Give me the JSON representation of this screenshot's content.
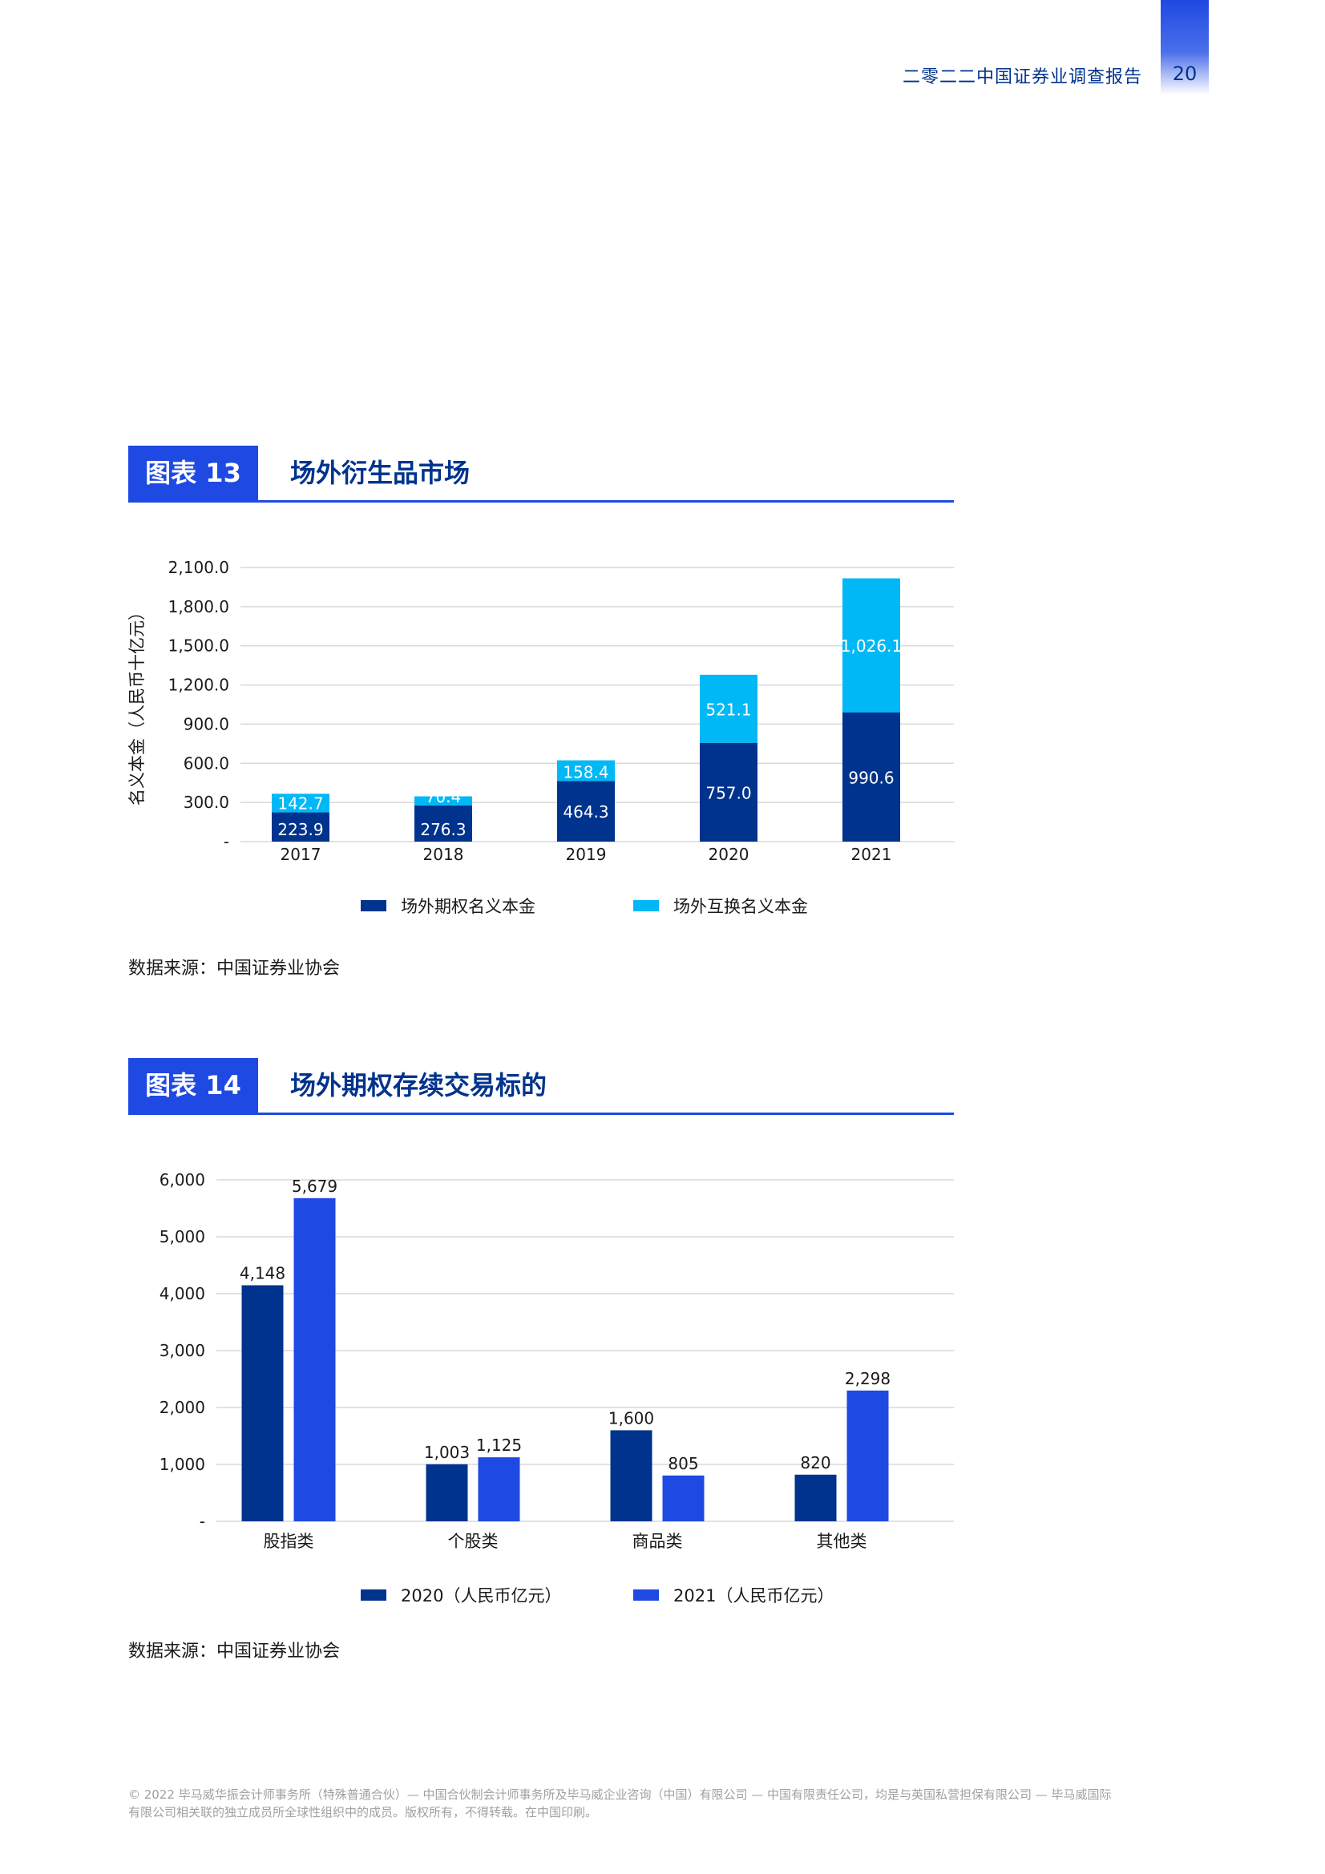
{
  "header": {
    "title": "二零二二中国证券业调查报告",
    "page_number": "20"
  },
  "figure13": {
    "badge": "图表 13",
    "title": "场外衍生品市场",
    "source": "数据来源：中国证券业协会"
  },
  "figure14": {
    "badge": "图表 14",
    "title": "场外期权存续交易标的",
    "source": "数据来源：中国证券业协会"
  },
  "footer": {
    "line1": "© 2022 毕马威华振会计师事务所（特殊普通合伙）— 中国合伙制会计师事务所及毕马威企业咨询（中国）有限公司 — 中国有限责任公司，均是与英国私营担保有限公司 — 毕马威国际",
    "line2": "有限公司相关联的独立成员所全球性组织中的成员。版权所有，不得转载。在中国印刷。"
  },
  "colors": {
    "dark_navy": "#00338d",
    "cyan": "#00b8f5",
    "blue": "#1e49e2"
  },
  "chart_data": [
    {
      "type": "bar",
      "stacked": true,
      "categories": [
        "2017",
        "2018",
        "2019",
        "2020",
        "2021"
      ],
      "series": [
        {
          "name": "场外期权名义本金",
          "values": [
            223.9,
            276.3,
            464.3,
            757.0,
            990.6
          ],
          "labels": [
            "223.9",
            "276.3",
            "464.3",
            "757.0",
            "990.6"
          ],
          "color": "#00338d"
        },
        {
          "name": "场外互换名义本金",
          "values": [
            142.7,
            70.4,
            158.4,
            521.1,
            1026.1
          ],
          "labels": [
            "142.7",
            "70.4",
            "158.4",
            "521.1",
            "1,026.1"
          ],
          "color": "#00b8f5"
        }
      ],
      "ylabel": "名义本金（人民币十亿元）",
      "ylim": [
        0,
        2100
      ],
      "yticks": [
        0,
        300,
        600,
        900,
        1200,
        1500,
        1800,
        2100
      ],
      "ytick_labels": [
        "-",
        "300.0",
        "600.0",
        "900.0",
        "1,200.0",
        "1,500.0",
        "1,800.0",
        "2,100.0"
      ],
      "grid": true,
      "legend": "bottom"
    },
    {
      "type": "bar",
      "stacked": false,
      "categories": [
        "股指类",
        "个股类",
        "商品类",
        "其他类"
      ],
      "series": [
        {
          "name": "2020（人民币亿元）",
          "values": [
            4148,
            1003,
            1600,
            820
          ],
          "labels": [
            "4,148",
            "1,003",
            "1,600",
            "820"
          ],
          "color": "#00338d"
        },
        {
          "name": "2021（人民币亿元）",
          "values": [
            5679,
            1125,
            805,
            2298
          ],
          "labels": [
            "5,679",
            "1,125",
            "805",
            "2,298"
          ],
          "color": "#1e49e2"
        }
      ],
      "ylim": [
        0,
        6000
      ],
      "yticks": [
        0,
        1000,
        2000,
        3000,
        4000,
        5000,
        6000
      ],
      "ytick_labels": [
        "-",
        "1,000",
        "2,000",
        "3,000",
        "4,000",
        "5,000",
        "6,000"
      ],
      "grid": true,
      "legend": "bottom"
    }
  ]
}
